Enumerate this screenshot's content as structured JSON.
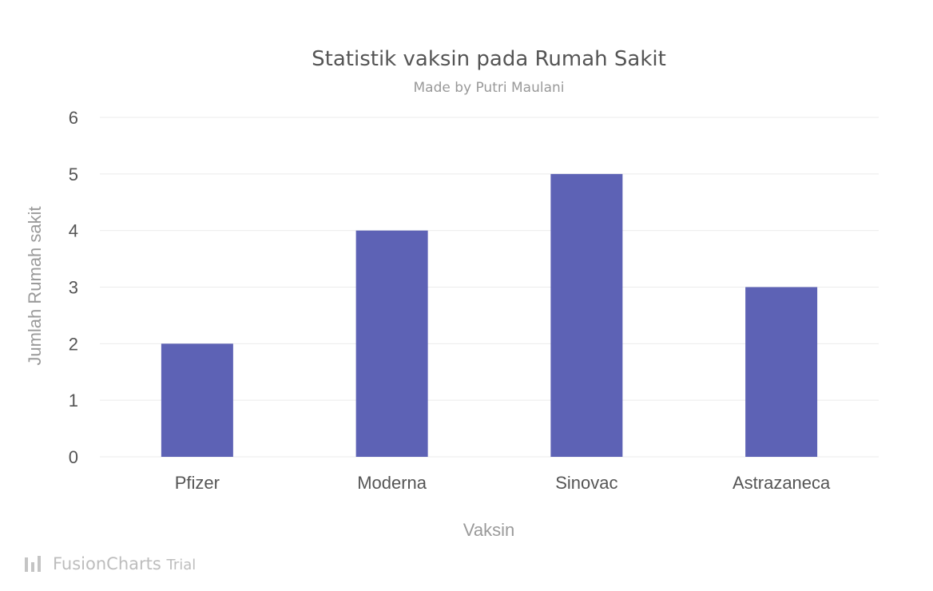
{
  "chart_data": {
    "type": "bar",
    "title": "Statistik vaksin pada Rumah Sakit",
    "subtitle": "Made by Putri Maulani",
    "xlabel": "Vaksin",
    "ylabel": "Jumlah Rumah sakit",
    "categories": [
      "Pfizer",
      "Moderna",
      "Sinovac",
      "Astrazaneca"
    ],
    "values": [
      2,
      4,
      5,
      3
    ],
    "ylim": [
      0,
      6
    ],
    "yticks": [
      0,
      1,
      2,
      3,
      4,
      5,
      6
    ],
    "grid": true,
    "bar_color": "#5d62b5"
  },
  "watermark": {
    "brand": "FusionCharts",
    "suffix": "Trial",
    "icon": "fusioncharts-logo-icon"
  }
}
